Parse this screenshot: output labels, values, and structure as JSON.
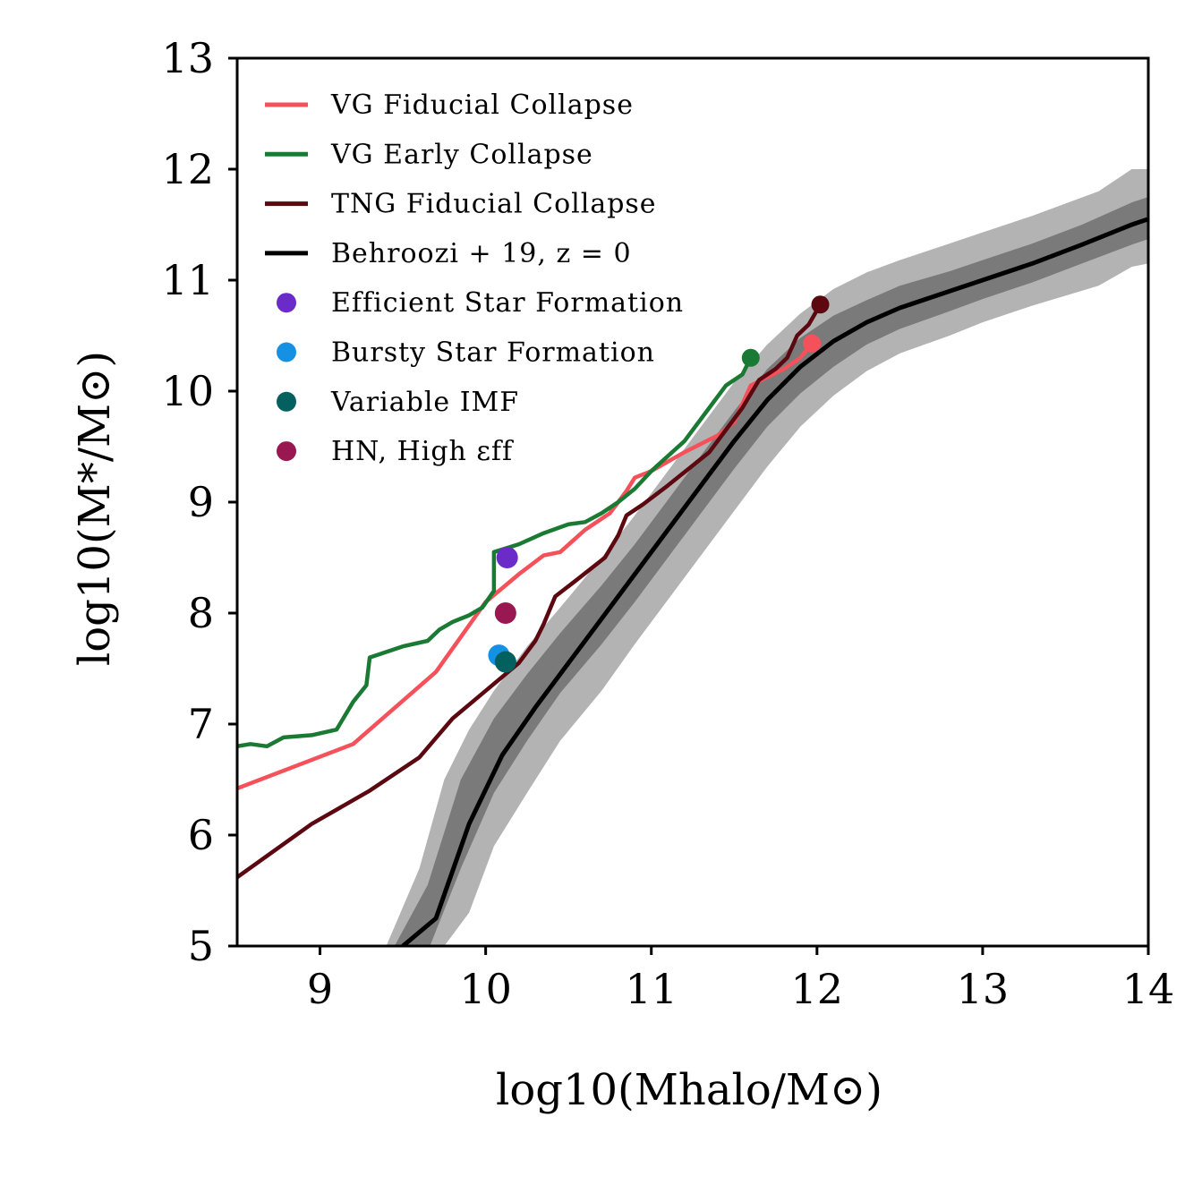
{
  "chart_data": {
    "type": "line",
    "xlabel": "log10(Mhalo/M⊙)",
    "ylabel": "log10(M*/M⊙)",
    "xlim": [
      8.5,
      14
    ],
    "ylim": [
      5,
      13
    ],
    "xticks": [
      "9",
      "10",
      "11",
      "12",
      "13",
      "14"
    ],
    "yticks": [
      "5",
      "6",
      "7",
      "8",
      "9",
      "10",
      "11",
      "12",
      "13"
    ],
    "grid": false,
    "legend_position": "top-left",
    "series": [
      {
        "name": "VG Fiducial Collapse",
        "color": "#f5515a",
        "x": [
          8.5,
          9.2,
          9.7,
          10.0,
          10.2,
          10.35,
          10.45,
          10.6,
          10.75,
          10.85,
          10.9,
          11.0,
          11.2,
          11.4,
          11.5,
          11.6,
          11.8,
          11.9,
          11.97
        ],
        "y": [
          6.42,
          6.82,
          7.47,
          8.1,
          8.35,
          8.52,
          8.55,
          8.75,
          8.9,
          9.1,
          9.22,
          9.28,
          9.45,
          9.6,
          9.72,
          10.05,
          10.2,
          10.3,
          10.43
        ],
        "endpoint": [
          11.97,
          10.43
        ]
      },
      {
        "name": "VG Early Collapse",
        "color": "#1a7a34",
        "x": [
          8.5,
          8.58,
          8.68,
          8.78,
          8.95,
          9.1,
          9.2,
          9.28,
          9.3,
          9.5,
          9.65,
          9.72,
          9.8,
          9.9,
          9.98,
          10.05,
          10.05,
          10.2,
          10.35,
          10.5,
          10.6,
          10.7,
          10.8,
          10.9,
          11.0,
          11.2,
          11.35,
          11.45,
          11.55,
          11.6
        ],
        "y": [
          6.8,
          6.82,
          6.8,
          6.88,
          6.9,
          6.95,
          7.2,
          7.35,
          7.6,
          7.7,
          7.75,
          7.85,
          7.92,
          7.98,
          8.05,
          8.2,
          8.55,
          8.62,
          8.72,
          8.8,
          8.82,
          8.9,
          9.0,
          9.12,
          9.28,
          9.55,
          9.85,
          10.05,
          10.15,
          10.3
        ],
        "endpoint": [
          11.6,
          10.3
        ]
      },
      {
        "name": "TNG Fiducial Collapse",
        "color": "#5c0810",
        "x": [
          8.5,
          8.95,
          9.3,
          9.6,
          9.8,
          10.0,
          10.2,
          10.3,
          10.35,
          10.42,
          10.55,
          10.72,
          10.8,
          10.85,
          10.95,
          11.1,
          11.35,
          11.45,
          11.55,
          11.65,
          11.75,
          11.82,
          11.88,
          11.95,
          12.02
        ],
        "y": [
          5.62,
          6.1,
          6.4,
          6.7,
          7.05,
          7.3,
          7.55,
          7.75,
          7.9,
          8.15,
          8.3,
          8.5,
          8.7,
          8.88,
          8.98,
          9.15,
          9.45,
          9.65,
          9.85,
          10.1,
          10.2,
          10.3,
          10.5,
          10.6,
          10.78
        ],
        "endpoint": [
          12.02,
          10.78
        ]
      },
      {
        "name": "Behroozi+19, z=0",
        "color": "#000000",
        "x": [
          9.5,
          9.7,
          9.9,
          10.1,
          10.3,
          10.5,
          10.7,
          10.9,
          11.1,
          11.3,
          11.5,
          11.7,
          11.9,
          12.1,
          12.3,
          12.5,
          12.8,
          13.0,
          13.3,
          13.6,
          13.9,
          14.0
        ],
        "y": [
          5.0,
          5.25,
          6.1,
          6.72,
          7.15,
          7.55,
          7.95,
          8.35,
          8.75,
          9.15,
          9.55,
          9.92,
          10.22,
          10.45,
          10.62,
          10.75,
          10.9,
          11.0,
          11.15,
          11.32,
          11.5,
          11.55
        ]
      }
    ],
    "bands": [
      {
        "name": "Behroozi+19 inner band",
        "color": "#7a7a7a",
        "x": [
          9.45,
          9.65,
          9.85,
          10.05,
          10.25,
          10.45,
          10.7,
          10.9,
          11.1,
          11.3,
          11.5,
          11.7,
          11.9,
          12.1,
          12.3,
          12.5,
          12.8,
          13.0,
          13.3,
          13.6,
          13.9,
          14.0
        ],
        "upper": [
          5.0,
          5.55,
          6.5,
          7.05,
          7.45,
          7.82,
          8.25,
          8.62,
          9.02,
          9.42,
          9.82,
          10.2,
          10.48,
          10.68,
          10.82,
          10.95,
          11.08,
          11.18,
          11.33,
          11.5,
          11.7,
          11.75
        ],
        "lower": [
          4.7,
          4.95,
          5.7,
          6.38,
          6.85,
          7.28,
          7.72,
          8.1,
          8.5,
          8.9,
          9.3,
          9.68,
          9.98,
          10.22,
          10.42,
          10.56,
          10.72,
          10.83,
          10.98,
          11.15,
          11.32,
          11.37
        ]
      },
      {
        "name": "Behroozi+19 outer band",
        "color": "#b3b3b3",
        "x": [
          9.4,
          9.6,
          9.75,
          9.9,
          10.05,
          10.25,
          10.45,
          10.7,
          10.9,
          11.1,
          11.3,
          11.5,
          11.7,
          11.9,
          12.1,
          12.3,
          12.5,
          12.8,
          13.0,
          13.3,
          13.7,
          13.9,
          14.0
        ],
        "upper": [
          5.0,
          5.7,
          6.5,
          6.95,
          7.3,
          7.7,
          8.05,
          8.5,
          8.88,
          9.28,
          9.68,
          10.08,
          10.42,
          10.7,
          10.92,
          11.07,
          11.18,
          11.33,
          11.43,
          11.58,
          11.8,
          12.0,
          12.0
        ],
        "lower": [
          4.7,
          4.7,
          5.0,
          5.3,
          5.9,
          6.38,
          6.85,
          7.3,
          7.72,
          8.12,
          8.52,
          8.92,
          9.32,
          9.68,
          9.96,
          10.18,
          10.34,
          10.5,
          10.62,
          10.77,
          10.95,
          11.12,
          11.15
        ]
      }
    ],
    "points": [
      {
        "name": "Efficient Star Formation",
        "color": "#6a2bc9",
        "x": 10.13,
        "y": 8.5
      },
      {
        "name": "Bursty Star Formation",
        "color": "#1590e2",
        "x": 10.08,
        "y": 7.62
      },
      {
        "name": "Variable IMF",
        "color": "#02615e",
        "x": 10.12,
        "y": 7.56
      },
      {
        "name": "HN, High εff",
        "color": "#9a1852",
        "x": 10.12,
        "y": 8.0
      }
    ],
    "legend": [
      {
        "label": "VG Fiducial Collapse",
        "kind": "line",
        "color": "#f5515a"
      },
      {
        "label": "VG Early Collapse",
        "kind": "line",
        "color": "#1a7a34"
      },
      {
        "label": "TNG Fiducial Collapse",
        "kind": "line",
        "color": "#5c0810"
      },
      {
        "label": "Behroozi + 19,  z = 0",
        "kind": "line",
        "color": "#000000"
      },
      {
        "label": "Efficient Star Formation",
        "kind": "point",
        "color": "#6a2bc9"
      },
      {
        "label": "Bursty Star Formation",
        "kind": "point",
        "color": "#1590e2"
      },
      {
        "label": "Variable IMF",
        "kind": "point",
        "color": "#02615e"
      },
      {
        "label": "HN,  High εff",
        "kind": "point",
        "color": "#9a1852"
      }
    ]
  }
}
